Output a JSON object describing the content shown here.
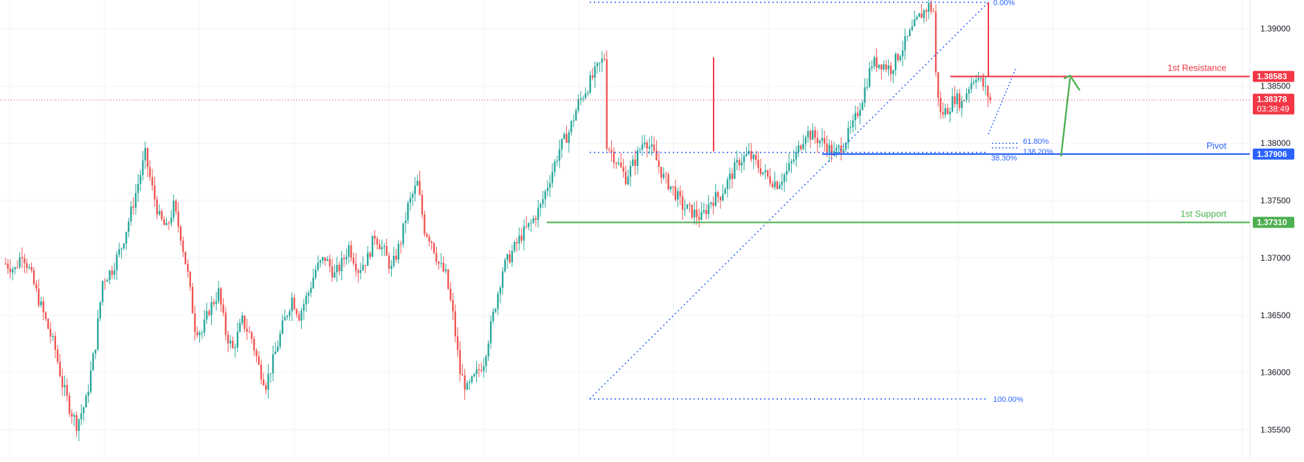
{
  "chart_data": {
    "type": "candlestick",
    "title": "",
    "xlabel": "",
    "ylabel": "",
    "ylim": [
      1.3525,
      1.3925
    ],
    "grid": true,
    "y_ticks": [
      "1.39000",
      "1.38500",
      "1.38000",
      "1.37500",
      "1.37000",
      "1.36500",
      "1.36000",
      "1.35500"
    ],
    "y_tick_values": [
      1.39,
      1.385,
      1.38,
      1.375,
      1.37,
      1.365,
      1.36,
      1.355
    ],
    "colors": {
      "up": "#26a69a",
      "down": "#ef5350",
      "resistance": "#f23645",
      "pivot": "#2962ff",
      "support": "#4caf50",
      "fib": "#2962ff",
      "grid": "#f0f3fa"
    },
    "levels": {
      "resistance": {
        "name": "1st Resistance",
        "value": 1.38583,
        "label": "1.38583"
      },
      "pivot": {
        "name": "Pivot",
        "value": 1.37906,
        "label": "1.37906"
      },
      "support": {
        "name": "1st Support",
        "value": 1.3731,
        "label": "1.37310"
      }
    },
    "current_price": {
      "value": 1.38378,
      "label": "1.38378",
      "countdown": "03:38:49"
    },
    "fibonacci": {
      "retracement": [
        {
          "label": "0.00%",
          "value": 1.3923
        },
        {
          "label": "100.00%",
          "value": 1.3577
        },
        {
          "label": "61.80%",
          "value": 1.38
        },
        {
          "label": "138.20%",
          "value": 1.3796
        },
        {
          "label": "38.30%",
          "value": 1.3791
        }
      ]
    },
    "series_keypoints": [
      [
        0,
        1.3695
      ],
      [
        4,
        1.369
      ],
      [
        7,
        1.3705
      ],
      [
        10,
        1.369
      ],
      [
        13,
        1.367
      ],
      [
        17,
        1.3645
      ],
      [
        21,
        1.362
      ],
      [
        24,
        1.359
      ],
      [
        27,
        1.357
      ],
      [
        30,
        1.3555
      ],
      [
        34,
        1.3575
      ],
      [
        38,
        1.3625
      ],
      [
        41,
        1.368
      ],
      [
        45,
        1.369
      ],
      [
        49,
        1.371
      ],
      [
        53,
        1.374
      ],
      [
        56,
        1.3765
      ],
      [
        59,
        1.379
      ],
      [
        62,
        1.376
      ],
      [
        65,
        1.3735
      ],
      [
        68,
        1.3725
      ],
      [
        71,
        1.3745
      ],
      [
        74,
        1.372
      ],
      [
        77,
        1.3685
      ],
      [
        80,
        1.364
      ],
      [
        83,
        1.3635
      ],
      [
        86,
        1.3655
      ],
      [
        90,
        1.367
      ],
      [
        93,
        1.3635
      ],
      [
        96,
        1.362
      ],
      [
        100,
        1.3645
      ],
      [
        104,
        1.363
      ],
      [
        107,
        1.3605
      ],
      [
        110,
        1.359
      ],
      [
        113,
        1.361
      ],
      [
        117,
        1.364
      ],
      [
        121,
        1.3665
      ],
      [
        124,
        1.365
      ],
      [
        128,
        1.367
      ],
      [
        131,
        1.369
      ],
      [
        135,
        1.37
      ],
      [
        139,
        1.3685
      ],
      [
        142,
        1.3695
      ],
      [
        145,
        1.371
      ],
      [
        149,
        1.369
      ],
      [
        153,
        1.37
      ],
      [
        156,
        1.372
      ],
      [
        160,
        1.3705
      ],
      [
        163,
        1.369
      ],
      [
        167,
        1.3715
      ],
      [
        170,
        1.3745
      ],
      [
        174,
        1.3765
      ],
      [
        177,
        1.3725
      ],
      [
        180,
        1.3715
      ],
      [
        183,
        1.3695
      ],
      [
        186,
        1.3685
      ],
      [
        189,
        1.365
      ],
      [
        192,
        1.36
      ],
      [
        195,
        1.3585
      ],
      [
        198,
        1.3595
      ],
      [
        202,
        1.361
      ],
      [
        206,
        1.365
      ],
      [
        210,
        1.369
      ],
      [
        214,
        1.3705
      ],
      [
        218,
        1.372
      ],
      [
        222,
        1.373
      ],
      [
        226,
        1.3745
      ],
      [
        230,
        1.377
      ],
      [
        234,
        1.3795
      ],
      [
        238,
        1.381
      ],
      [
        242,
        1.3835
      ],
      [
        246,
        1.385
      ],
      [
        250,
        1.3865
      ],
      [
        253,
        1.3875
      ],
      [
        254,
        1.38
      ],
      [
        258,
        1.3785
      ],
      [
        262,
        1.377
      ],
      [
        266,
        1.3785
      ],
      [
        270,
        1.3805
      ],
      [
        274,
        1.379
      ],
      [
        278,
        1.377
      ],
      [
        282,
        1.376
      ],
      [
        286,
        1.3745
      ],
      [
        290,
        1.374
      ],
      [
        294,
        1.3735
      ],
      [
        298,
        1.375
      ],
      [
        302,
        1.3755
      ],
      [
        306,
        1.377
      ],
      [
        310,
        1.3785
      ],
      [
        314,
        1.379
      ],
      [
        318,
        1.378
      ],
      [
        322,
        1.377
      ],
      [
        326,
        1.3765
      ],
      [
        330,
        1.3775
      ],
      [
        334,
        1.379
      ],
      [
        338,
        1.381
      ],
      [
        342,
        1.3805
      ],
      [
        346,
        1.38
      ],
      [
        350,
        1.379
      ],
      [
        354,
        1.38
      ],
      [
        358,
        1.3815
      ],
      [
        362,
        1.384
      ],
      [
        366,
        1.387
      ],
      [
        370,
        1.387
      ],
      [
        374,
        1.3865
      ],
      [
        378,
        1.388
      ],
      [
        382,
        1.3895
      ],
      [
        386,
        1.391
      ],
      [
        390,
        1.392
      ],
      [
        392,
        1.3915
      ],
      [
        393,
        1.386
      ],
      [
        395,
        1.3825
      ],
      [
        398,
        1.383
      ],
      [
        401,
        1.384
      ],
      [
        404,
        1.3835
      ],
      [
        407,
        1.385
      ],
      [
        410,
        1.386
      ],
      [
        413,
        1.385
      ],
      [
        416,
        1.3838
      ]
    ]
  }
}
